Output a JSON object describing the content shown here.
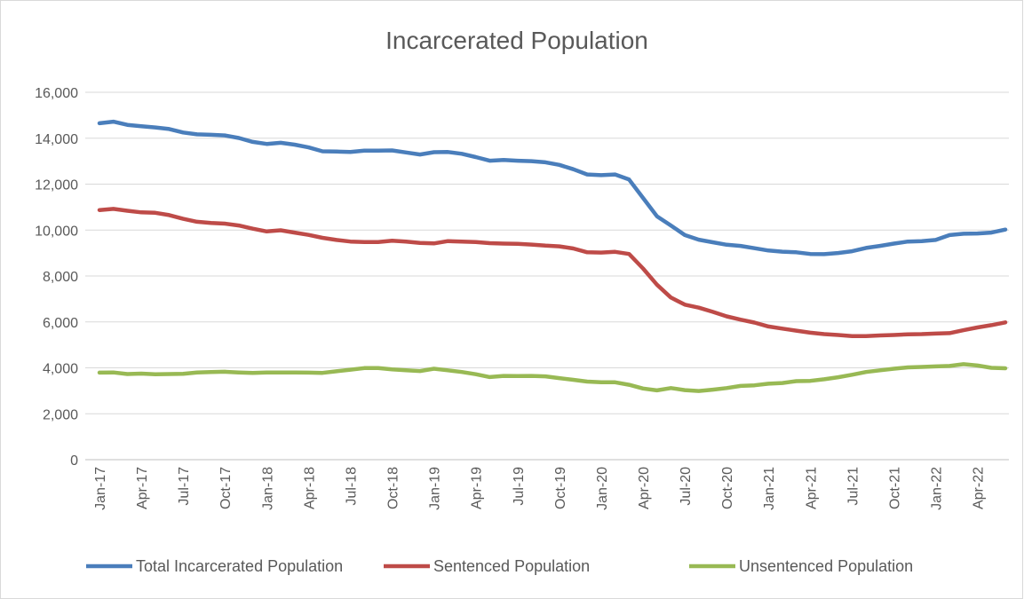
{
  "chart_data": {
    "type": "line",
    "title": "Incarcerated Population",
    "categories": [
      "Jan-17",
      null,
      null,
      "Apr-17",
      null,
      null,
      "Jul-17",
      null,
      null,
      "Oct-17",
      null,
      null,
      "Jan-18",
      null,
      null,
      "Apr-18",
      null,
      null,
      "Jul-18",
      null,
      null,
      "Oct-18",
      null,
      null,
      "Jan-19",
      null,
      null,
      "Apr-19",
      null,
      null,
      "Jul-19",
      null,
      null,
      "Oct-19",
      null,
      null,
      "Jan-20",
      null,
      null,
      "Apr-20",
      null,
      null,
      "Jul-20",
      null,
      null,
      "Oct-20",
      null,
      null,
      "Jan-21",
      null,
      null,
      "Apr-21",
      null,
      null,
      "Jul-21",
      null,
      null,
      "Oct-21",
      null,
      null,
      "Jan-22",
      null,
      null,
      "Apr-22",
      null,
      null
    ],
    "series": [
      {
        "name": "Total Incarcerated Population",
        "color": "#4a7ebb",
        "values": [
          14650,
          14720,
          14580,
          14520,
          14470,
          14400,
          14250,
          14170,
          14150,
          14120,
          14010,
          13840,
          13750,
          13800,
          13720,
          13600,
          13430,
          13420,
          13400,
          13460,
          13460,
          13470,
          13380,
          13290,
          13390,
          13400,
          13320,
          13180,
          13020,
          13050,
          13020,
          13000,
          12950,
          12840,
          12650,
          12420,
          12390,
          12420,
          12200,
          11400,
          10600,
          10200,
          9780,
          9580,
          9470,
          9360,
          9310,
          9210,
          9110,
          9060,
          9030,
          8960,
          8950,
          9000,
          9080,
          9220,
          9310,
          9410,
          9500,
          9520,
          9570,
          9780,
          9840,
          9850,
          9890,
          10020
        ]
      },
      {
        "name": "Sentenced Population",
        "color": "#be4b48",
        "values": [
          10870,
          10920,
          10840,
          10770,
          10750,
          10650,
          10490,
          10360,
          10310,
          10280,
          10200,
          10060,
          9940,
          9990,
          9890,
          9790,
          9660,
          9570,
          9500,
          9480,
          9480,
          9540,
          9500,
          9440,
          9420,
          9520,
          9500,
          9480,
          9430,
          9410,
          9400,
          9370,
          9320,
          9290,
          9200,
          9030,
          9020,
          9050,
          8960,
          8330,
          7620,
          7060,
          6750,
          6620,
          6440,
          6240,
          6100,
          5970,
          5800,
          5710,
          5620,
          5530,
          5470,
          5430,
          5380,
          5380,
          5410,
          5430,
          5460,
          5470,
          5490,
          5510,
          5640,
          5760,
          5860,
          5980
        ]
      },
      {
        "name": "Unsentenced Population",
        "color": "#98b954",
        "values": [
          3790,
          3800,
          3730,
          3750,
          3720,
          3730,
          3740,
          3800,
          3820,
          3830,
          3800,
          3780,
          3800,
          3800,
          3800,
          3790,
          3780,
          3850,
          3920,
          3990,
          3990,
          3930,
          3890,
          3860,
          3960,
          3890,
          3820,
          3720,
          3600,
          3650,
          3640,
          3650,
          3630,
          3550,
          3480,
          3400,
          3370,
          3370,
          3260,
          3100,
          3020,
          3120,
          3030,
          2990,
          3050,
          3120,
          3210,
          3240,
          3310,
          3340,
          3420,
          3430,
          3500,
          3590,
          3700,
          3820,
          3890,
          3960,
          4020,
          4040,
          4060,
          4080,
          4160,
          4100,
          4000,
          3980
        ]
      }
    ],
    "ylim": [
      0,
      16000
    ],
    "yticks": [
      0,
      {
        "value": 2000,
        "label": "2,000"
      },
      {
        "value": 4000,
        "label": "4,000"
      },
      {
        "value": 6000,
        "label": "6,000"
      },
      {
        "value": 8000,
        "label": "8,000"
      },
      {
        "value": 10000,
        "label": "10,000"
      },
      {
        "value": 12000,
        "label": "12,000"
      },
      {
        "value": 14000,
        "label": "14,000"
      },
      {
        "value": 16000,
        "label": "16,000"
      }
    ],
    "grid": true,
    "legend": "bottom"
  }
}
